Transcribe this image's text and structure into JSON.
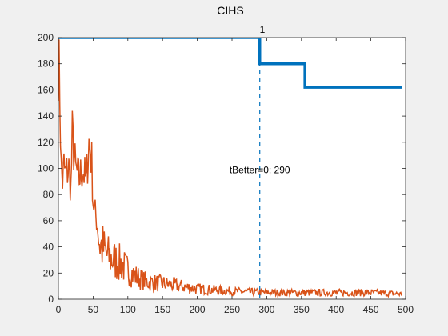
{
  "chart_data": {
    "type": "line",
    "title": "CIHS",
    "xlabel": "",
    "ylabel": "",
    "xlim": [
      0,
      500
    ],
    "ylim": [
      0,
      200
    ],
    "xticks": [
      0,
      50,
      100,
      150,
      200,
      250,
      300,
      350,
      400,
      450,
      500
    ],
    "yticks": [
      0,
      20,
      40,
      60,
      80,
      100,
      120,
      140,
      160,
      180,
      200
    ],
    "grid": false,
    "series": [
      {
        "name": "",
        "color": "#0072BD",
        "style": "step",
        "points": [
          [
            0,
            200
          ],
          [
            290,
            200
          ],
          [
            290,
            180
          ],
          [
            355,
            180
          ],
          [
            355,
            162
          ],
          [
            495,
            162
          ]
        ]
      },
      {
        "name": "",
        "color": "#D95319",
        "style": "noisy-line",
        "x_range": [
          0,
          495
        ],
        "envelope": [
          [
            0,
            185
          ],
          [
            2,
            160
          ],
          [
            4,
            100
          ],
          [
            6,
            90
          ],
          [
            8,
            102
          ],
          [
            10,
            95
          ],
          [
            15,
            100
          ],
          [
            18,
            85
          ],
          [
            20,
            125
          ],
          [
            25,
            98
          ],
          [
            30,
            92
          ],
          [
            35,
            100
          ],
          [
            40,
            90
          ],
          [
            44,
            120
          ],
          [
            48,
            105
          ],
          [
            50,
            75
          ],
          [
            55,
            60
          ],
          [
            60,
            42
          ],
          [
            65,
            38
          ],
          [
            70,
            33
          ],
          [
            80,
            30
          ],
          [
            90,
            27
          ],
          [
            100,
            22
          ],
          [
            110,
            18
          ],
          [
            120,
            15
          ],
          [
            130,
            13
          ],
          [
            150,
            12
          ],
          [
            175,
            10
          ],
          [
            200,
            8
          ],
          [
            250,
            6
          ],
          [
            300,
            5
          ],
          [
            350,
            5
          ],
          [
            400,
            5
          ],
          [
            450,
            5
          ],
          [
            495,
            4
          ]
        ]
      }
    ],
    "annotations": [
      {
        "text": "1",
        "x": 250,
        "y": 200
      },
      {
        "text": "tBetter=0: 290",
        "x": 290,
        "y": 100
      }
    ],
    "vline": {
      "x": 290,
      "style": "dashed",
      "color": "#0072BD"
    }
  }
}
